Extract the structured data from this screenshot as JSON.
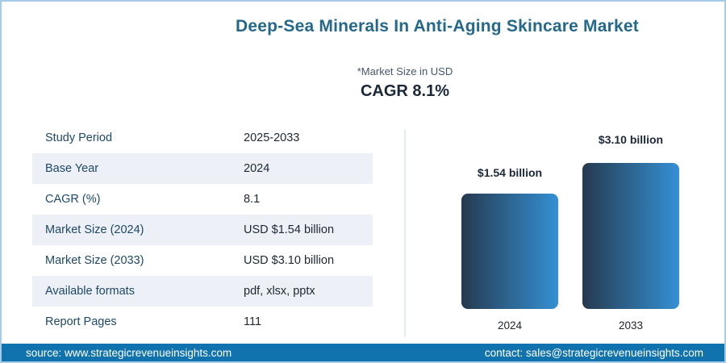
{
  "header": {
    "title": "Deep-Sea Minerals In Anti-Aging Skincare Market",
    "subtitle": "*Market Size in USD",
    "cagr_label": "CAGR 8.1%"
  },
  "table": {
    "rows": [
      {
        "label": "Study Period",
        "value": "2025-2033"
      },
      {
        "label": "Base Year",
        "value": "2024"
      },
      {
        "label": "CAGR (%)",
        "value": "8.1"
      },
      {
        "label": "Market Size (2024)",
        "value": "USD $1.54 billion"
      },
      {
        "label": "Market Size (2033)",
        "value": "USD $3.10 billion"
      },
      {
        "label": "Available formats",
        "value": "pdf, xlsx, pptx"
      },
      {
        "label": "Report Pages",
        "value": "111"
      }
    ]
  },
  "chart_data": {
    "type": "bar",
    "categories": [
      "2024",
      "2033"
    ],
    "values": [
      1.54,
      3.1
    ],
    "value_labels": [
      "$1.54 billion",
      "$3.10 billion"
    ],
    "unit": "USD billion",
    "title": "",
    "xlabel": "",
    "ylabel": "",
    "grid": false,
    "legend": false,
    "bar_gradient": [
      "#263a4f",
      "#3590d4"
    ]
  },
  "footer": {
    "source": "source: www.strategicrevenueinsights.com",
    "contact": "contact: sales@strategicrevenueinsights.com",
    "background_color": "#1173ae"
  },
  "colors": {
    "border": "#a5cbe9",
    "title_text": "#24688a",
    "table_label_text": "#1d4866",
    "table_alt_row_bg": "#edf1f7"
  }
}
